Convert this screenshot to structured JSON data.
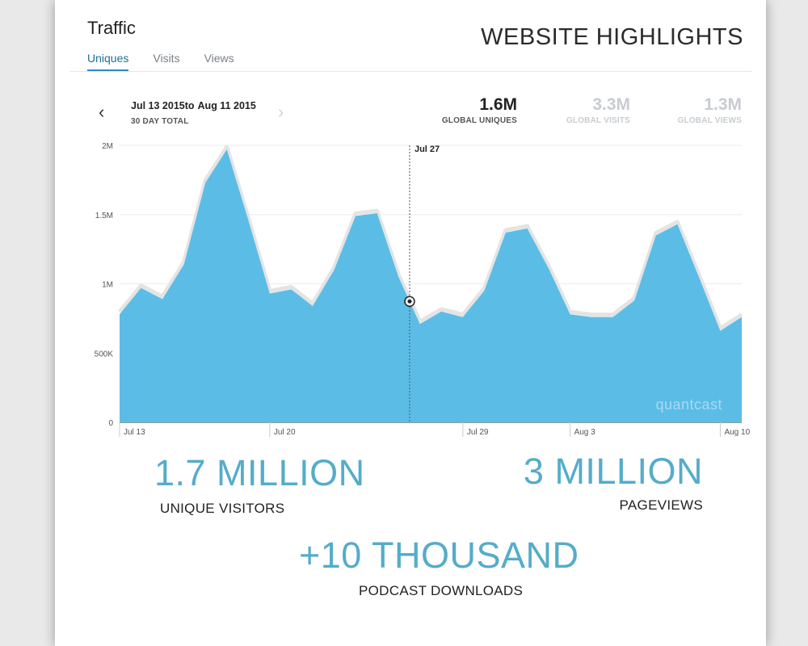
{
  "header": {
    "title": "Traffic",
    "highlights": "WEBSITE HIGHLIGHTS",
    "tabs": [
      {
        "label": "Uniques",
        "active": true
      },
      {
        "label": "Visits",
        "active": false
      },
      {
        "label": "Views",
        "active": false
      }
    ]
  },
  "range": {
    "start": "Jul 13 2015",
    "to": "to",
    "end": "Aug 11 2015",
    "sublabel": "30 DAY TOTAL",
    "prev_icon": "chevron-left-icon",
    "next_icon": "chevron-right-icon"
  },
  "stats": [
    {
      "value": "1.6M",
      "label": "GLOBAL UNIQUES",
      "active": true
    },
    {
      "value": "3.3M",
      "label": "GLOBAL VISITS",
      "active": false
    },
    {
      "value": "1.3M",
      "label": "GLOBAL VIEWS",
      "active": false
    }
  ],
  "colors": {
    "area": "#5bbde6",
    "area_outline": "#e4e4e4",
    "accent": "#2a8dc3",
    "big_number": "#55acc9"
  },
  "chart_data": {
    "type": "area",
    "series": [
      {
        "values": [
          780000,
          970000,
          890000,
          1140000,
          1730000,
          1970000,
          1460000,
          930000,
          960000,
          840000,
          1100000,
          1490000,
          1510000,
          1050000,
          710000,
          800000,
          760000,
          950000,
          1370000,
          1400000,
          1110000,
          780000,
          760000,
          760000,
          880000,
          1350000,
          1430000,
          1050000,
          660000,
          760000
        ]
      }
    ],
    "x": [
      "Jul 13",
      "Jul 14",
      "Jul 15",
      "Jul 16",
      "Jul 17",
      "Jul 18",
      "Jul 19",
      "Jul 20",
      "Jul 21",
      "Jul 22",
      "Jul 23",
      "Jul 24",
      "Jul 25",
      "Jul 26",
      "Jul 27",
      "Jul 28",
      "Jul 29",
      "Jul 30",
      "Jul 31",
      "Aug 1",
      "Aug 2",
      "Aug 3",
      "Aug 4",
      "Aug 5",
      "Aug 6",
      "Aug 7",
      "Aug 8",
      "Aug 9",
      "Aug 10",
      "Aug 11"
    ],
    "x_ticks": [
      "Jul 13",
      "Jul 20",
      "Jul 29",
      "Aug 3",
      "Aug 10"
    ],
    "y_ticks": [
      "0",
      "500K",
      "1M",
      "1.5M",
      "2M"
    ],
    "ylim": [
      0,
      2000000
    ],
    "grid": true,
    "marker": {
      "label": "Jul 27"
    },
    "watermark": "quantcast"
  },
  "summary": [
    {
      "big": "1.7 MILLION",
      "label": "UNIQUE VISITORS"
    },
    {
      "big": "3 MILLION",
      "label": "PAGEVIEWS"
    },
    {
      "big": "+10 THOUSAND",
      "label": "PODCAST DOWNLOADS"
    }
  ]
}
